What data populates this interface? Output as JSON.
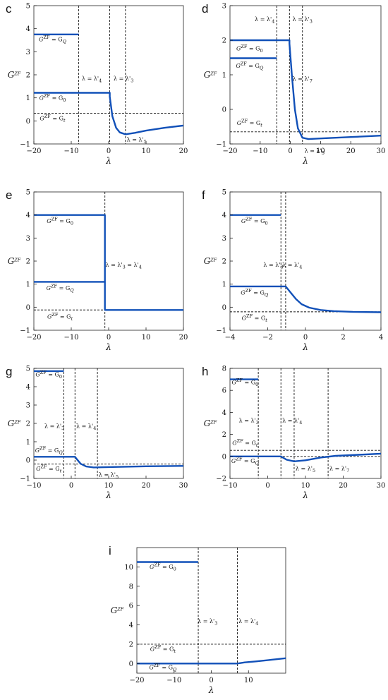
{
  "chart_data": [
    {
      "panel": "c",
      "type": "line",
      "xlabel": "λ",
      "ylabel": "G^ZF",
      "xlim": [
        -20,
        20
      ],
      "ylim": [
        -1,
        5
      ],
      "xticks": [
        -20,
        -10,
        0,
        10,
        20
      ],
      "yticks": [
        -1,
        0,
        1,
        2,
        3,
        4,
        5
      ],
      "series": [
        {
          "points": [
            [
              -20,
              3.75
            ],
            [
              -8,
              3.75
            ]
          ]
        },
        {
          "points": [
            [
              -20,
              1.22
            ],
            [
              0.3,
              1.22
            ],
            [
              0.3,
              1.05
            ],
            [
              1,
              0.2
            ],
            [
              2,
              -0.3
            ],
            [
              3,
              -0.5
            ],
            [
              4.5,
              -0.58
            ],
            [
              7,
              -0.52
            ],
            [
              10,
              -0.42
            ],
            [
              15,
              -0.3
            ],
            [
              20,
              -0.2
            ]
          ]
        }
      ],
      "hlines": [
        0.33
      ],
      "vlines": [
        -8,
        0.3,
        4.5
      ],
      "annotations": [
        {
          "text": "G^ZF = G_Q",
          "x": -15,
          "y": 3.45
        },
        {
          "text": "G^ZF = G_0",
          "x": -15,
          "y": 0.92
        },
        {
          "text": "G^ZF = G_t",
          "x": -15,
          "y": 0.03
        },
        {
          "text": "λ = λ'_4",
          "x": -4.5,
          "y": 1.75
        },
        {
          "text": "λ = λ'_3",
          "x": 4,
          "y": 1.75
        },
        {
          "text": "λ = λ'_5",
          "x": 7.5,
          "y": -0.9
        }
      ]
    },
    {
      "panel": "d",
      "type": "line",
      "xlabel": "λ",
      "ylabel": "G^ZF",
      "xlim": [
        -20,
        30
      ],
      "ylim": [
        -1,
        3
      ],
      "xticks": [
        -20,
        -10,
        0,
        10,
        20,
        30
      ],
      "yticks": [
        -1,
        0,
        1,
        2,
        3
      ],
      "series": [
        {
          "points": [
            [
              -20,
              2.0
            ],
            [
              -0.3,
              2.0
            ],
            [
              -0.3,
              1.9
            ],
            [
              0.5,
              1.0
            ],
            [
              1.5,
              0.0
            ],
            [
              2.5,
              -0.55
            ],
            [
              4,
              -0.82
            ],
            [
              6,
              -0.86
            ],
            [
              10,
              -0.84
            ],
            [
              20,
              -0.8
            ],
            [
              30,
              -0.76
            ]
          ]
        },
        {
          "points": [
            [
              -20,
              1.48
            ],
            [
              -4.5,
              1.48
            ]
          ]
        }
      ],
      "hlines": [
        -0.65
      ],
      "vlines": [
        -4.5,
        -0.3,
        4
      ],
      "annotations": [
        {
          "text": "λ = λ'_4",
          "x": -8.5,
          "y": 2.55
        },
        {
          "text": "λ = λ'_3",
          "x": 4,
          "y": 2.55
        },
        {
          "text": "G^ZF = G_0",
          "x": -13.5,
          "y": 1.7
        },
        {
          "text": "G^ZF = G_Q",
          "x": -13.5,
          "y": 1.2
        },
        {
          "text": "λ = λ'_7",
          "x": 4,
          "y": 0.83
        },
        {
          "text": "G^ZF = G_t",
          "x": -13.5,
          "y": -0.45
        },
        {
          "text": "λ = λ'_5",
          "x": 8,
          "y": -1.25
        }
      ]
    },
    {
      "panel": "e",
      "type": "line",
      "xlabel": "λ",
      "ylabel": "G^ZF",
      "xlim": [
        -20,
        20
      ],
      "ylim": [
        -1,
        5
      ],
      "xticks": [
        -20,
        -10,
        0,
        10,
        20
      ],
      "yticks": [
        -1,
        0,
        1,
        2,
        3,
        4,
        5
      ],
      "series": [
        {
          "points": [
            [
              -20,
              4.0
            ],
            [
              -1,
              4.0
            ],
            [
              -1,
              -0.12
            ],
            [
              20,
              -0.12
            ]
          ]
        },
        {
          "points": [
            [
              -20,
              1.1
            ],
            [
              -1,
              1.1
            ]
          ]
        }
      ],
      "hlines": [
        -0.12
      ],
      "vlines": [
        -1
      ],
      "annotations": [
        {
          "text": "G^ZF = G_0",
          "x": -13,
          "y": 3.65
        },
        {
          "text": "λ = λ'_3 = λ'_4",
          "x": 4,
          "y": 1.75
        },
        {
          "text": "G^ZF = G_Q",
          "x": -13,
          "y": 0.75
        },
        {
          "text": "G^ZF = G_t",
          "x": -13,
          "y": -0.5
        }
      ]
    },
    {
      "panel": "f",
      "type": "line",
      "xlabel": "λ",
      "ylabel": "G^ZF",
      "xlim": [
        -4,
        4
      ],
      "ylim": [
        -1,
        5
      ],
      "xticks": [
        -4,
        -2,
        0,
        2,
        4
      ],
      "yticks": [
        -1,
        0,
        1,
        2,
        3,
        4,
        5
      ],
      "series": [
        {
          "points": [
            [
              -4,
              4.0
            ],
            [
              -1.3,
              4.0
            ]
          ]
        },
        {
          "points": [
            [
              -4,
              0.9
            ],
            [
              -1.05,
              0.9
            ],
            [
              -0.8,
              0.65
            ],
            [
              -0.5,
              0.35
            ],
            [
              -0.2,
              0.13
            ],
            [
              0.2,
              -0.02
            ],
            [
              0.8,
              -0.12
            ],
            [
              1.5,
              -0.17
            ],
            [
              2.5,
              -0.2
            ],
            [
              4,
              -0.22
            ]
          ]
        }
      ],
      "hlines": [
        -0.2
      ],
      "vlines": [
        -1.3,
        -1.05
      ],
      "annotations": [
        {
          "text": "G^ZF = G_0",
          "x": -2.7,
          "y": 3.65
        },
        {
          "text": "λ = λ'_3",
          "x": -1.7,
          "y": 1.75
        },
        {
          "text": "λ = λ'_4",
          "x": -0.7,
          "y": 1.75
        },
        {
          "text": "G^ZF = G_Q",
          "x": -2.7,
          "y": 0.55
        },
        {
          "text": "G^ZF = G_t",
          "x": -2.7,
          "y": -0.55
        }
      ]
    },
    {
      "panel": "g",
      "type": "line",
      "xlabel": "λ",
      "ylabel": "G^ZF",
      "xlim": [
        -10,
        30
      ],
      "ylim": [
        -1,
        5
      ],
      "xticks": [
        -10,
        0,
        10,
        20,
        30
      ],
      "yticks": [
        -1,
        0,
        1,
        2,
        3,
        4,
        5
      ],
      "series": [
        {
          "points": [
            [
              -10,
              4.85
            ],
            [
              -2,
              4.85
            ]
          ]
        },
        {
          "points": [
            [
              -10,
              0.18
            ],
            [
              1,
              0.18
            ],
            [
              1.5,
              0.05
            ],
            [
              2.5,
              -0.2
            ],
            [
              4,
              -0.35
            ],
            [
              6,
              -0.4
            ],
            [
              10,
              -0.38
            ],
            [
              20,
              -0.34
            ],
            [
              30,
              -0.32
            ]
          ]
        }
      ],
      "hlines": [
        -0.22
      ],
      "vlines": [
        -2,
        1,
        7
      ],
      "annotations": [
        {
          "text": "G^ZF = G_0",
          "x": -6,
          "y": 4.55
        },
        {
          "text": "λ = λ'_3",
          "x": -4.5,
          "y": 1.75
        },
        {
          "text": "λ = λ'_4",
          "x": 4,
          "y": 1.75
        },
        {
          "text": "G^ZF = G_Q",
          "x": -6,
          "y": 0.43
        },
        {
          "text": "G^ZF = G_t",
          "x": -6,
          "y": -0.58
        },
        {
          "text": "λ = λ'_5",
          "x": 10,
          "y": -0.9
        }
      ]
    },
    {
      "panel": "h",
      "type": "line",
      "xlabel": "λ",
      "ylabel": "G^ZF",
      "xlim": [
        -10,
        30
      ],
      "ylim": [
        -2,
        8
      ],
      "xticks": [
        -10,
        0,
        10,
        20,
        30
      ],
      "yticks": [
        -2,
        0,
        2,
        4,
        6,
        8
      ],
      "series": [
        {
          "points": [
            [
              -10,
              7.0
            ],
            [
              -2.5,
              7.0
            ]
          ]
        },
        {
          "points": [
            [
              -10,
              0.0
            ],
            [
              3.5,
              0.0
            ],
            [
              5,
              -0.3
            ],
            [
              7,
              -0.45
            ],
            [
              10,
              -0.35
            ],
            [
              14,
              -0.1
            ],
            [
              18,
              0.05
            ],
            [
              24,
              0.15
            ],
            [
              30,
              0.25
            ]
          ]
        }
      ],
      "hlines": [
        0.55,
        0.0
      ],
      "vlines": [
        -2.5,
        3.5,
        7,
        16
      ],
      "annotations": [
        {
          "text": "G^ZF = G_0",
          "x": -6,
          "y": 6.55
        },
        {
          "text": "λ = λ'_3",
          "x": -5,
          "y": 3.1
        },
        {
          "text": "λ = λ'_4",
          "x": 6.5,
          "y": 3.1
        },
        {
          "text": "G^ZF = G_t",
          "x": -6,
          "y": 1.05
        },
        {
          "text": "G^ZF = G_Q",
          "x": -6,
          "y": -0.6
        },
        {
          "text": "λ = λ'_5",
          "x": 10,
          "y": -1.25
        },
        {
          "text": "λ = λ'_7",
          "x": 19,
          "y": -1.25
        }
      ]
    },
    {
      "panel": "i",
      "type": "line",
      "xlabel": "λ",
      "ylabel": "G^ZF",
      "xlim": [
        -20,
        20
      ],
      "ylim": [
        -1,
        12
      ],
      "xticks": [
        -20,
        -10,
        0,
        10
      ],
      "yticks": [
        0,
        2,
        4,
        6,
        8,
        10
      ],
      "series": [
        {
          "points": [
            [
              -20,
              10.5
            ],
            [
              -3.5,
              10.5
            ]
          ]
        },
        {
          "points": [
            [
              -20,
              0.0
            ],
            [
              7,
              0.0
            ],
            [
              9,
              0.12
            ],
            [
              12,
              0.22
            ],
            [
              16,
              0.38
            ],
            [
              20,
              0.55
            ]
          ]
        }
      ],
      "hlines": [
        2.0
      ],
      "vlines": [
        -3.5,
        7
      ],
      "annotations": [
        {
          "text": "G^ZF = G_0",
          "x": -13,
          "y": 9.8
        },
        {
          "text": "λ = λ'_3",
          "x": -1,
          "y": 4.2
        },
        {
          "text": "λ = λ'_4",
          "x": 10,
          "y": 4.2
        },
        {
          "text": "G^ZF = G_t",
          "x": -13,
          "y": 1.3
        },
        {
          "text": "G^ZF = G_Q",
          "x": -13,
          "y": -0.6
        }
      ]
    }
  ]
}
